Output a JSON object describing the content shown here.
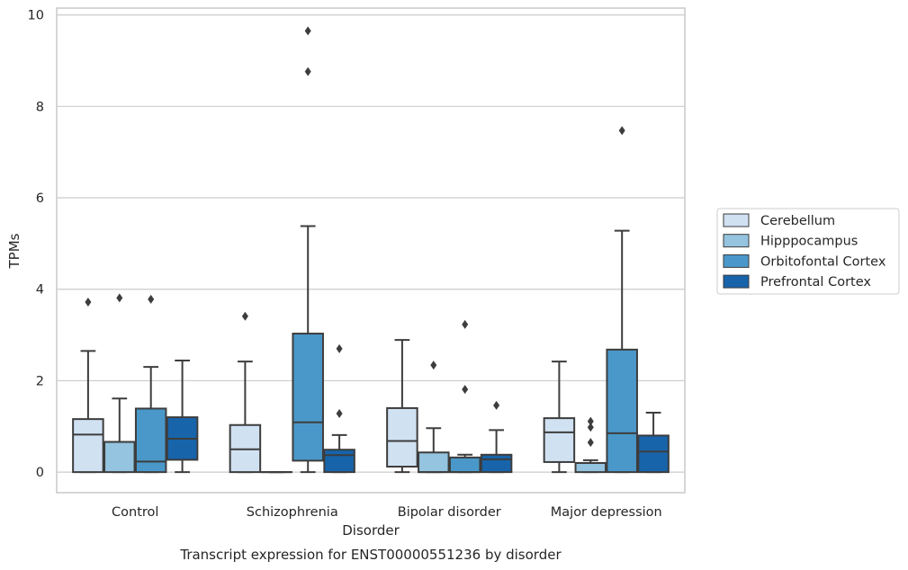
{
  "chart_data": {
    "type": "box",
    "caption": "Transcript expression for ENST00000551236 by disorder",
    "xlabel": "Disorder",
    "ylabel": "TPMs",
    "ylim": [
      -0.45,
      10.15
    ],
    "yticks": [
      0,
      2,
      4,
      6,
      8,
      10
    ],
    "grid": true,
    "legend_position": "right",
    "categories": [
      "Control",
      "Schizophrenia",
      "Bipolar disorder",
      "Major depression"
    ],
    "series": [
      {
        "name": "Cerebellum",
        "color": "#d0e1f2",
        "boxes": [
          {
            "min": 0.0,
            "q1": 0.0,
            "median": 0.82,
            "q3": 1.16,
            "max": 2.65,
            "outliers": [
              3.72
            ]
          },
          {
            "min": 0.0,
            "q1": 0.0,
            "median": 0.5,
            "q3": 1.03,
            "max": 2.42,
            "outliers": [
              3.41
            ]
          },
          {
            "min": 0.0,
            "q1": 0.12,
            "median": 0.68,
            "q3": 1.4,
            "max": 2.89,
            "outliers": []
          },
          {
            "min": 0.0,
            "q1": 0.22,
            "median": 0.87,
            "q3": 1.18,
            "max": 2.42,
            "outliers": []
          }
        ]
      },
      {
        "name": "Hipppocampus",
        "color": "#94c4df",
        "boxes": [
          {
            "min": 0.0,
            "q1": 0.0,
            "median": 0.66,
            "q3": 0.66,
            "max": 1.61,
            "outliers": [
              3.81
            ]
          },
          {
            "min": 0.0,
            "q1": 0.0,
            "median": 0.0,
            "q3": 0.0,
            "max": 0.0,
            "outliers": []
          },
          {
            "min": 0.0,
            "q1": 0.0,
            "median": 0.0,
            "q3": 0.43,
            "max": 0.96,
            "outliers": [
              2.34
            ]
          },
          {
            "min": 0.0,
            "q1": 0.0,
            "median": 0.2,
            "q3": 0.2,
            "max": 0.26,
            "outliers": [
              0.65,
              0.98,
              1.11
            ]
          }
        ]
      },
      {
        "name": "Orbitofontal Cortex",
        "color": "#4a98c9",
        "boxes": [
          {
            "min": 0.0,
            "q1": 0.0,
            "median": 0.23,
            "q3": 1.39,
            "max": 2.3,
            "outliers": [
              3.78
            ]
          },
          {
            "min": 0.0,
            "q1": 0.25,
            "median": 1.09,
            "q3": 3.03,
            "max": 5.38,
            "outliers": [
              8.76,
              9.65
            ]
          },
          {
            "min": 0.0,
            "q1": 0.0,
            "median": 0.0,
            "q3": 0.32,
            "max": 0.38,
            "outliers": [
              1.81,
              3.23
            ]
          },
          {
            "min": 0.0,
            "q1": 0.0,
            "median": 0.85,
            "q3": 2.68,
            "max": 5.28,
            "outliers": [
              7.47
            ]
          }
        ]
      },
      {
        "name": "Prefrontal Cortex",
        "color": "#1764ab",
        "boxes": [
          {
            "min": 0.0,
            "q1": 0.27,
            "median": 0.73,
            "q3": 1.2,
            "max": 2.44,
            "outliers": []
          },
          {
            "min": 0.0,
            "q1": 0.0,
            "median": 0.37,
            "q3": 0.49,
            "max": 0.81,
            "outliers": [
              1.28,
              2.7
            ]
          },
          {
            "min": 0.0,
            "q1": 0.0,
            "median": 0.28,
            "q3": 0.38,
            "max": 0.92,
            "outliers": [
              1.46
            ]
          },
          {
            "min": 0.0,
            "q1": 0.0,
            "median": 0.45,
            "q3": 0.8,
            "max": 1.3,
            "outliers": []
          }
        ]
      }
    ]
  }
}
